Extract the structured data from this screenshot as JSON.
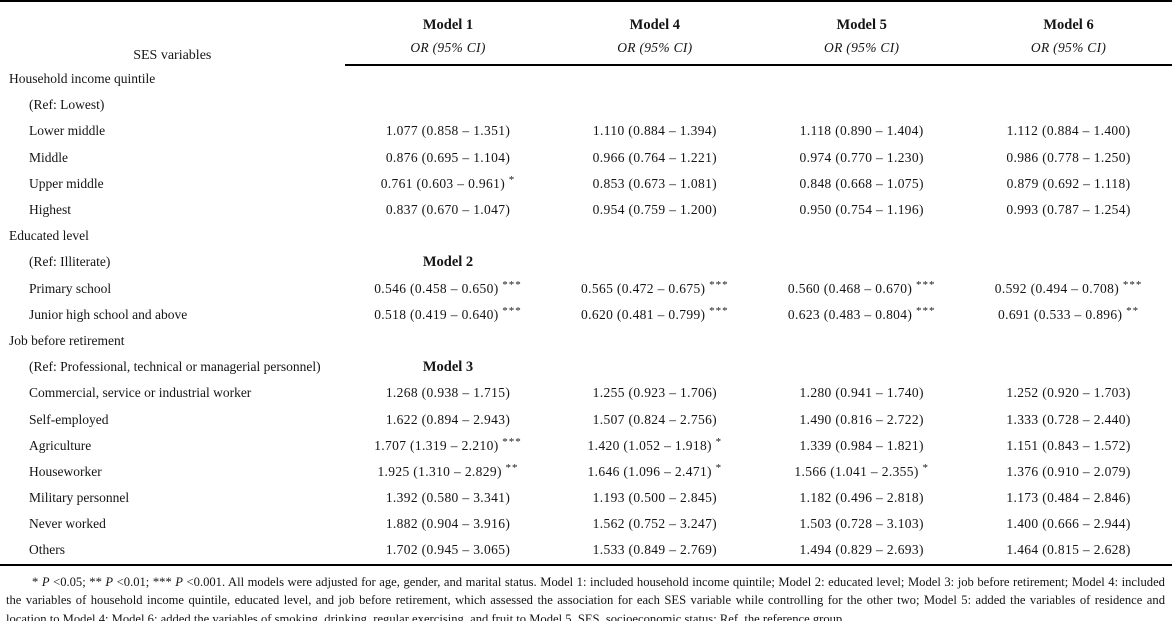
{
  "table": {
    "header": {
      "ses_label": "SES variables",
      "models": [
        "Model 1",
        "Model 4",
        "Model 5",
        "Model 6"
      ],
      "or_ci_label": "OR (95% CI)"
    },
    "rows": [
      {
        "type": "section",
        "label": "Household income quintile"
      },
      {
        "type": "ref",
        "label": "(Ref: Lowest)",
        "inline_model": ""
      },
      {
        "type": "data",
        "label": "Lower middle",
        "cells": [
          {
            "v": "1.077 (0.858 – 1.351)",
            "s": ""
          },
          {
            "v": "1.110 (0.884 – 1.394)",
            "s": ""
          },
          {
            "v": "1.118 (0.890 – 1.404)",
            "s": ""
          },
          {
            "v": "1.112 (0.884 – 1.400)",
            "s": ""
          }
        ]
      },
      {
        "type": "data",
        "label": "Middle",
        "cells": [
          {
            "v": "0.876 (0.695 – 1.104)",
            "s": ""
          },
          {
            "v": "0.966 (0.764 – 1.221)",
            "s": ""
          },
          {
            "v": "0.974 (0.770 – 1.230)",
            "s": ""
          },
          {
            "v": "0.986 (0.778 – 1.250)",
            "s": ""
          }
        ]
      },
      {
        "type": "data",
        "label": "Upper middle",
        "cells": [
          {
            "v": "0.761 (0.603 – 0.961)",
            "s": "*"
          },
          {
            "v": "0.853 (0.673 – 1.081)",
            "s": ""
          },
          {
            "v": "0.848 (0.668 – 1.075)",
            "s": ""
          },
          {
            "v": "0.879 (0.692 – 1.118)",
            "s": ""
          }
        ]
      },
      {
        "type": "data",
        "label": "Highest",
        "cells": [
          {
            "v": "0.837 (0.670 – 1.047)",
            "s": ""
          },
          {
            "v": "0.954 (0.759 – 1.200)",
            "s": ""
          },
          {
            "v": "0.950 (0.754 – 1.196)",
            "s": ""
          },
          {
            "v": "0.993 (0.787 – 1.254)",
            "s": ""
          }
        ]
      },
      {
        "type": "section",
        "label": "Educated level"
      },
      {
        "type": "ref",
        "label": "(Ref: Illiterate)",
        "inline_model": "Model 2"
      },
      {
        "type": "data",
        "label": "Primary school",
        "cells": [
          {
            "v": "0.546 (0.458 – 0.650)",
            "s": "***"
          },
          {
            "v": "0.565 (0.472 – 0.675)",
            "s": "***"
          },
          {
            "v": "0.560 (0.468 – 0.670)",
            "s": "***"
          },
          {
            "v": "0.592 (0.494 – 0.708)",
            "s": "***"
          }
        ]
      },
      {
        "type": "data",
        "label": "Junior high school and above",
        "cells": [
          {
            "v": "0.518 (0.419 – 0.640)",
            "s": "***"
          },
          {
            "v": "0.620 (0.481 – 0.799)",
            "s": "***"
          },
          {
            "v": "0.623 (0.483 – 0.804)",
            "s": "***"
          },
          {
            "v": "0.691 (0.533 – 0.896)",
            "s": "**"
          }
        ]
      },
      {
        "type": "section",
        "label": "Job before retirement"
      },
      {
        "type": "ref",
        "label": "(Ref: Professional, technical or managerial personnel)",
        "inline_model": "Model 3"
      },
      {
        "type": "data",
        "label": "Commercial, service or industrial worker",
        "cells": [
          {
            "v": "1.268 (0.938 – 1.715)",
            "s": ""
          },
          {
            "v": "1.255 (0.923 – 1.706)",
            "s": ""
          },
          {
            "v": "1.280 (0.941 – 1.740)",
            "s": ""
          },
          {
            "v": "1.252 (0.920 – 1.703)",
            "s": ""
          }
        ]
      },
      {
        "type": "data",
        "label": "Self-employed",
        "cells": [
          {
            "v": "1.622 (0.894 – 2.943)",
            "s": ""
          },
          {
            "v": "1.507 (0.824 – 2.756)",
            "s": ""
          },
          {
            "v": "1.490 (0.816 – 2.722)",
            "s": ""
          },
          {
            "v": "1.333 (0.728 – 2.440)",
            "s": ""
          }
        ]
      },
      {
        "type": "data",
        "label": "Agriculture",
        "cells": [
          {
            "v": "1.707 (1.319 – 2.210)",
            "s": "***"
          },
          {
            "v": "1.420 (1.052 – 1.918)",
            "s": "*"
          },
          {
            "v": "1.339 (0.984 – 1.821)",
            "s": ""
          },
          {
            "v": "1.151 (0.843 – 1.572)",
            "s": ""
          }
        ]
      },
      {
        "type": "data",
        "label": "Houseworker",
        "cells": [
          {
            "v": "1.925 (1.310 – 2.829)",
            "s": "**"
          },
          {
            "v": "1.646 (1.096 – 2.471)",
            "s": "*"
          },
          {
            "v": "1.566 (1.041 – 2.355)",
            "s": "*"
          },
          {
            "v": "1.376 (0.910 – 2.079)",
            "s": ""
          }
        ]
      },
      {
        "type": "data",
        "label": "Military personnel",
        "cells": [
          {
            "v": "1.392 (0.580 – 3.341)",
            "s": ""
          },
          {
            "v": "1.193 (0.500 – 2.845)",
            "s": ""
          },
          {
            "v": "1.182 (0.496 – 2.818)",
            "s": ""
          },
          {
            "v": "1.173 (0.484 – 2.846)",
            "s": ""
          }
        ]
      },
      {
        "type": "data",
        "label": "Never worked",
        "cells": [
          {
            "v": "1.882 (0.904 – 3.916)",
            "s": ""
          },
          {
            "v": "1.562 (0.752 – 3.247)",
            "s": ""
          },
          {
            "v": "1.503 (0.728 – 3.103)",
            "s": ""
          },
          {
            "v": "1.400 (0.666 – 2.944)",
            "s": ""
          }
        ]
      },
      {
        "type": "data",
        "label": "Others",
        "cells": [
          {
            "v": "1.702 (0.945 – 3.065)",
            "s": ""
          },
          {
            "v": "1.533 (0.849 – 2.769)",
            "s": ""
          },
          {
            "v": "1.494 (0.829 – 2.693)",
            "s": ""
          },
          {
            "v": "1.464 (0.815 – 2.628)",
            "s": ""
          }
        ]
      }
    ]
  },
  "footnote": {
    "segments": [
      {
        "text": "* ",
        "italic": false
      },
      {
        "text": "P",
        "italic": true
      },
      {
        "text": " <0.05; ** ",
        "italic": false
      },
      {
        "text": "P",
        "italic": true
      },
      {
        "text": " <0.01; *** ",
        "italic": false
      },
      {
        "text": "P",
        "italic": true
      },
      {
        "text": " <0.001. All models were adjusted for age, gender, and marital status. Model 1: included household income quintile; Model 2: educated level; Model 3: job before retirement; Model 4: included the variables of household income quintile, educated level, and job before retirement, which assessed the association for each SES variable while controlling for the other two; Model 5: added the variables of residence and location to Model 4; Model 6: added the variables of smoking, drinking, regular exercising, and fruit to Model 5. SES, socioeconomic status; Ref, the reference group.",
        "italic": false
      }
    ]
  }
}
